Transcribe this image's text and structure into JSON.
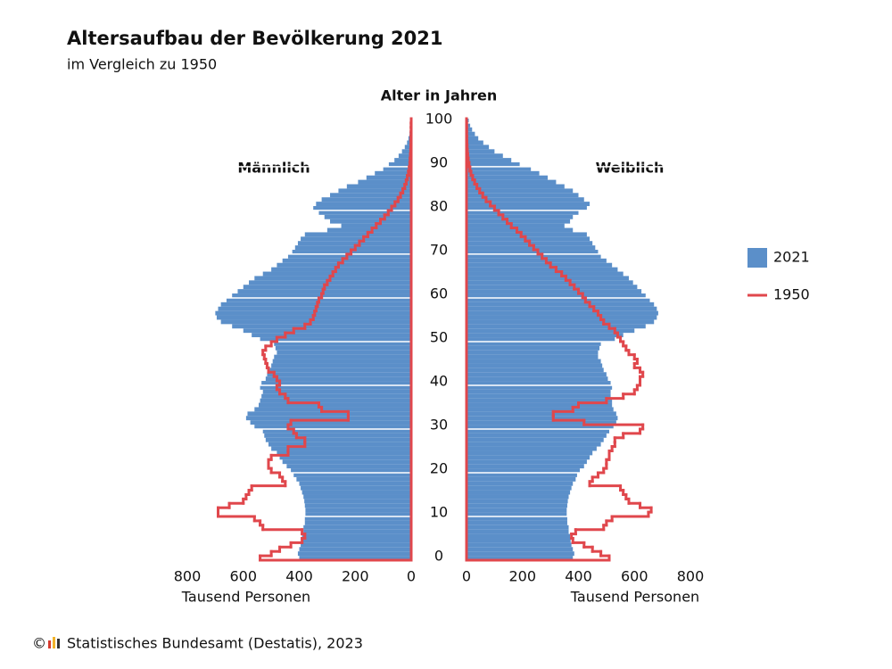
{
  "chart_data": {
    "type": "pyramid",
    "title": "Altersaufbau der Bevölkerung 2021",
    "subtitle": "im Vergleich zu 1950",
    "y_label": "Alter in Jahren",
    "left_label": "Männlich",
    "right_label": "Weiblich",
    "x_label": "Tausend Personen",
    "copyright": "©",
    "source": "Statistisches Bundesamt (Destatis), 2023",
    "xlim": [
      0,
      800
    ],
    "xticks": [
      0,
      200,
      400,
      600,
      800
    ],
    "ylim": [
      0,
      101
    ],
    "yticks": [
      0,
      10,
      20,
      30,
      40,
      50,
      60,
      70,
      80,
      90,
      100
    ],
    "grid": true,
    "ages": [
      0,
      1,
      2,
      3,
      4,
      5,
      6,
      7,
      8,
      9,
      10,
      11,
      12,
      13,
      14,
      15,
      16,
      17,
      18,
      19,
      20,
      21,
      22,
      23,
      24,
      25,
      26,
      27,
      28,
      29,
      30,
      31,
      32,
      33,
      34,
      35,
      36,
      37,
      38,
      39,
      40,
      41,
      42,
      43,
      44,
      45,
      46,
      47,
      48,
      49,
      50,
      51,
      52,
      53,
      54,
      55,
      56,
      57,
      58,
      59,
      60,
      61,
      62,
      63,
      64,
      65,
      66,
      67,
      68,
      69,
      70,
      71,
      72,
      73,
      74,
      75,
      76,
      77,
      78,
      79,
      80,
      81,
      82,
      83,
      84,
      85,
      86,
      87,
      88,
      89,
      90,
      91,
      92,
      93,
      94,
      95,
      96,
      97,
      98,
      99,
      100
    ],
    "series": [
      {
        "name": "2021",
        "color": "#5b8fc9",
        "style": "bar",
        "male": [
          400,
          405,
          400,
          395,
          392,
          390,
          385,
          385,
          380,
          380,
          378,
          378,
          380,
          382,
          385,
          390,
          395,
          400,
          410,
          420,
          430,
          445,
          460,
          470,
          480,
          500,
          510,
          520,
          525,
          530,
          560,
          575,
          590,
          585,
          560,
          545,
          540,
          535,
          530,
          540,
          535,
          520,
          515,
          505,
          500,
          495,
          490,
          480,
          485,
          490,
          540,
          570,
          600,
          640,
          680,
          695,
          700,
          690,
          680,
          660,
          640,
          620,
          600,
          580,
          560,
          530,
          500,
          480,
          460,
          440,
          425,
          415,
          405,
          395,
          380,
          300,
          250,
          290,
          310,
          330,
          350,
          340,
          320,
          290,
          260,
          230,
          190,
          160,
          130,
          100,
          80,
          60,
          45,
          33,
          23,
          15,
          10,
          6,
          4,
          2,
          1
        ],
        "female": [
          380,
          385,
          380,
          375,
          372,
          370,
          365,
          365,
          360,
          360,
          358,
          358,
          360,
          362,
          365,
          370,
          375,
          380,
          390,
          395,
          405,
          420,
          430,
          440,
          450,
          465,
          480,
          490,
          500,
          510,
          525,
          535,
          540,
          535,
          525,
          520,
          520,
          515,
          515,
          520,
          515,
          505,
          500,
          490,
          485,
          480,
          470,
          470,
          475,
          480,
          530,
          560,
          600,
          640,
          670,
          680,
          685,
          680,
          670,
          655,
          640,
          625,
          610,
          595,
          580,
          560,
          540,
          520,
          500,
          480,
          470,
          460,
          450,
          440,
          430,
          380,
          350,
          370,
          380,
          400,
          430,
          440,
          420,
          400,
          380,
          350,
          320,
          290,
          260,
          230,
          190,
          160,
          130,
          100,
          80,
          60,
          42,
          30,
          20,
          13,
          8
        ]
      },
      {
        "name": "1950",
        "color": "#e0474c",
        "style": "step",
        "male": [
          540,
          500,
          470,
          430,
          390,
          380,
          390,
          530,
          540,
          560,
          690,
          690,
          650,
          600,
          590,
          580,
          570,
          450,
          460,
          470,
          500,
          510,
          510,
          500,
          440,
          440,
          380,
          380,
          410,
          420,
          440,
          430,
          225,
          225,
          320,
          330,
          440,
          450,
          470,
          480,
          470,
          480,
          490,
          510,
          515,
          520,
          525,
          530,
          520,
          500,
          480,
          450,
          420,
          380,
          360,
          350,
          345,
          340,
          335,
          330,
          320,
          315,
          310,
          300,
          290,
          280,
          270,
          260,
          245,
          230,
          215,
          200,
          185,
          170,
          155,
          140,
          125,
          110,
          95,
          82,
          70,
          58,
          47,
          38,
          30,
          23,
          18,
          14,
          10,
          7,
          5,
          4,
          3,
          2,
          1.5,
          1,
          1,
          0.5,
          0.5,
          0.5,
          0
        ],
        "female": [
          510,
          480,
          450,
          420,
          380,
          375,
          390,
          490,
          500,
          520,
          650,
          660,
          620,
          580,
          570,
          560,
          550,
          440,
          450,
          470,
          490,
          500,
          500,
          510,
          510,
          520,
          530,
          530,
          560,
          620,
          630,
          420,
          310,
          310,
          380,
          400,
          500,
          560,
          600,
          610,
          620,
          620,
          630,
          620,
          600,
          610,
          600,
          580,
          570,
          560,
          550,
          540,
          530,
          510,
          490,
          480,
          470,
          455,
          440,
          425,
          415,
          400,
          385,
          370,
          355,
          340,
          320,
          300,
          285,
          270,
          255,
          240,
          225,
          210,
          195,
          180,
          160,
          145,
          130,
          115,
          100,
          85,
          70,
          58,
          47,
          37,
          29,
          22,
          16,
          12,
          9,
          6,
          4,
          3,
          2,
          1.5,
          1,
          0.5,
          0.5,
          0.5,
          0
        ]
      }
    ]
  }
}
